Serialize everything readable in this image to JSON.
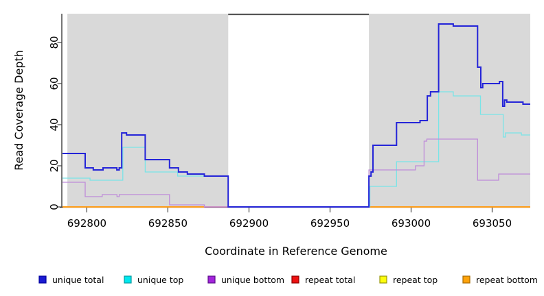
{
  "chart_data": {
    "type": "line",
    "subtype": "step-coverage-plot",
    "title": "",
    "xlabel": "Coordinate in Reference Genome",
    "ylabel": "Read Coverage Depth",
    "xlim": [
      692785,
      693073.5
    ],
    "ylim": [
      0,
      94
    ],
    "x_ticks": [
      692800,
      692850,
      692900,
      692950,
      693000,
      693050
    ],
    "y_ticks": [
      0,
      20,
      40,
      60,
      80
    ],
    "grid": false,
    "legend_position": "bottom",
    "regions": {
      "covered_fill": "#d9d9d9",
      "covered": [
        {
          "x0": 692788,
          "x1": 692887.2
        },
        {
          "x0": 692974,
          "x1": 693073.5
        }
      ],
      "gap": {
        "x0": 692887.2,
        "x1": 692974
      },
      "gap_line_color": "#555555"
    },
    "series": [
      {
        "name": "unique total",
        "line_color": "#2424d8",
        "legend_fill": "#1a1ad2",
        "legend_border": "#00009c",
        "line_width": 2,
        "segments": [
          [
            [
              692785,
              26
            ],
            [
              692799,
              19
            ],
            [
              692804,
              18
            ],
            [
              692810,
              19
            ],
            [
              692818.5,
              18
            ],
            [
              692820,
              19
            ],
            [
              692821.5,
              36
            ],
            [
              692824.5,
              35
            ],
            [
              692836,
              23
            ],
            [
              692851,
              19
            ],
            [
              692856.5,
              17
            ],
            [
              692862,
              16
            ],
            [
              692872.5,
              15
            ],
            [
              692887.2,
              0
            ],
            [
              692974,
              15
            ],
            [
              692975.3,
              17
            ],
            [
              692976.5,
              30
            ],
            [
              692991,
              41
            ],
            [
              693005.5,
              42
            ],
            [
              693010,
              54
            ],
            [
              693012,
              56
            ],
            [
              693017,
              89
            ],
            [
              693026,
              88
            ],
            [
              693041,
              68
            ],
            [
              693043,
              58
            ],
            [
              693044.2,
              60
            ],
            [
              693054.5,
              61
            ],
            [
              693056.5,
              49
            ],
            [
              693057.6,
              52
            ],
            [
              693059,
              51
            ],
            [
              693069,
              50
            ],
            [
              693073.5,
              50
            ]
          ]
        ]
      },
      {
        "name": "unique top",
        "line_color": "#79e4e7",
        "legend_fill": "#00e8ee",
        "legend_border": "#009aa0",
        "line_width": 1.3,
        "segments": [
          [
            [
              692785,
              14
            ],
            [
              692802,
              13
            ],
            [
              692822.2,
              29
            ],
            [
              692836,
              17
            ],
            [
              692856,
              15
            ],
            [
              692887.2,
              0
            ],
            [
              692974.6,
              10
            ],
            [
              692991,
              22
            ],
            [
              693017,
              56
            ],
            [
              693026,
              54
            ],
            [
              693042.8,
              45
            ],
            [
              693056.8,
              34
            ],
            [
              693058.2,
              36
            ],
            [
              693068,
              35
            ],
            [
              693073.5,
              35
            ]
          ]
        ]
      },
      {
        "name": "unique bottom",
        "line_color": "#bf8cd9",
        "legend_fill": "#a424dc",
        "legend_border": "#5c0f8a",
        "line_width": 1.3,
        "segments": [
          [
            [
              692785,
              12
            ],
            [
              692799,
              5
            ],
            [
              692809.5,
              6
            ],
            [
              692818.6,
              5
            ],
            [
              692820,
              6
            ],
            [
              692851,
              1
            ],
            [
              692872.5,
              0
            ],
            [
              692974,
              18
            ],
            [
              693002.7,
              20
            ],
            [
              693008,
              32
            ],
            [
              693009.7,
              33
            ],
            [
              693041,
              13
            ],
            [
              693054,
              16
            ],
            [
              693073.5,
              16
            ]
          ]
        ]
      },
      {
        "name": "repeat total",
        "line_color": "#dd4a6b",
        "legend_fill": "#ee1111",
        "legend_border": "#8b0000",
        "line_width": 1.5,
        "segments": [
          [
            [
              692785,
              0
            ],
            [
              692887.2,
              0
            ]
          ]
        ]
      },
      {
        "name": "repeat top",
        "line_color": "#ffff33",
        "legend_fill": "#fdfd0d",
        "legend_border": "#97970b",
        "line_width": 1,
        "segments": [
          [
            [
              692785,
              0
            ],
            [
              692887.2,
              0
            ]
          ]
        ]
      },
      {
        "name": "repeat bottom",
        "line_color": "#ff9d18",
        "legend_fill": "#ffa30a",
        "legend_border": "#a86a00",
        "line_width": 2,
        "segments": [
          [
            [
              692785,
              0
            ],
            [
              692872.5,
              0
            ]
          ],
          [
            [
              692974,
              0
            ],
            [
              693073.5,
              0
            ]
          ]
        ]
      }
    ]
  }
}
